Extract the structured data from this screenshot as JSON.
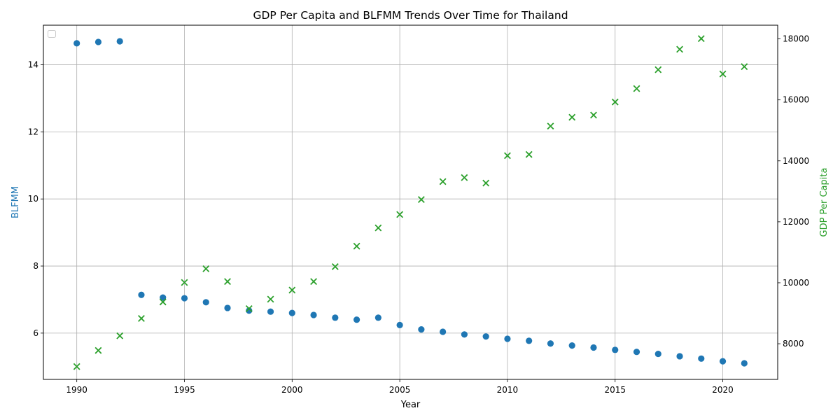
{
  "chart_data": {
    "type": "scatter",
    "title": "GDP Per Capita and BLFMM Trends Over Time for Thailand",
    "xlabel": "Year",
    "ylabel_left": "BLFMM",
    "ylabel_right": "GDP Per Capita",
    "xlim": [
      1988.45,
      2022.55
    ],
    "ylim_left": [
      4.62,
      15.18
    ],
    "ylim_right": [
      6830,
      18450
    ],
    "x_ticks": [
      1990,
      1995,
      2000,
      2005,
      2010,
      2015,
      2020
    ],
    "y_left_ticks": [
      6,
      8,
      10,
      12,
      14
    ],
    "y_right_ticks": [
      8000,
      10000,
      12000,
      14000,
      16000,
      18000
    ],
    "grid": true,
    "legend": "top-left, empty",
    "colors": {
      "left": "#1f77b4",
      "right": "#2ca02c"
    },
    "series": [
      {
        "axis": "left",
        "marker": "circle",
        "x": [
          1990,
          1991,
          1992,
          1993,
          1994,
          1995,
          1996,
          1997,
          1998,
          1999,
          2000,
          2001,
          2002,
          2003,
          2004,
          2005,
          2006,
          2007,
          2008,
          2009,
          2010,
          2011,
          2012,
          2013,
          2014,
          2015,
          2016,
          2017,
          2018,
          2019,
          2020,
          2021
        ],
        "values": [
          14.64,
          14.68,
          14.7,
          7.14,
          7.06,
          7.04,
          6.92,
          6.75,
          6.67,
          6.64,
          6.6,
          6.54,
          6.46,
          6.4,
          6.46,
          6.24,
          6.11,
          6.04,
          5.96,
          5.9,
          5.83,
          5.77,
          5.69,
          5.63,
          5.57,
          5.5,
          5.44,
          5.38,
          5.31,
          5.24,
          5.16,
          5.1
        ]
      },
      {
        "axis": "right",
        "marker": "x",
        "x": [
          1990,
          1991,
          1992,
          1993,
          1994,
          1995,
          1996,
          1997,
          1998,
          1999,
          2000,
          2001,
          2002,
          2003,
          2004,
          2005,
          2006,
          2007,
          2008,
          2009,
          2010,
          2011,
          2012,
          2013,
          2014,
          2015,
          2016,
          2017,
          2018,
          2019,
          2020,
          2021
        ],
        "values": [
          7250,
          7780,
          8260,
          8830,
          9370,
          10010,
          10460,
          10040,
          9150,
          9460,
          9760,
          10040,
          10530,
          11200,
          11800,
          12240,
          12730,
          13320,
          13450,
          13270,
          14170,
          14210,
          15140,
          15430,
          15500,
          15930,
          16370,
          16990,
          17660,
          18010,
          16850,
          17090
        ]
      }
    ]
  }
}
